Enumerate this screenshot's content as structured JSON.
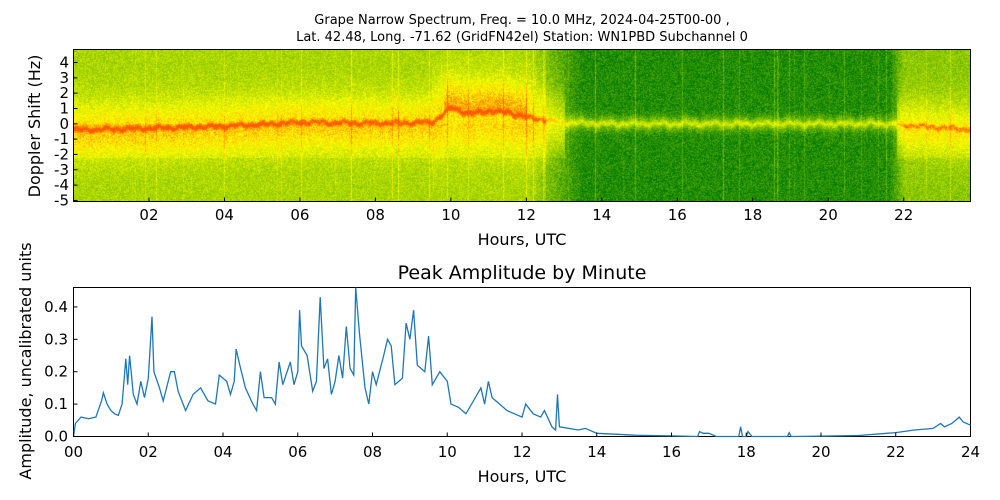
{
  "chart_data": [
    {
      "type": "heatmap",
      "title_lines": [
        "Grape Narrow Spectrum, Freq. = 10.0 MHz, 2024-04-25T00-00 ,",
        "Lat.  42.48, Long. -71.62 (GridFN42el) Station: WN1PBD Subchannel 0"
      ],
      "xlabel": "Hours, UTC",
      "ylabel": "Doppler Shift (Hz)",
      "xlim": [
        0,
        23.77
      ],
      "ylim": [
        -5.07,
        4.85
      ],
      "xticks": [
        "02",
        "04",
        "06",
        "08",
        "10",
        "12",
        "14",
        "16",
        "18",
        "20",
        "22"
      ],
      "xtick_values": [
        2,
        4,
        6,
        8,
        10,
        12,
        14,
        16,
        18,
        20,
        22
      ],
      "yticks": [
        "4",
        "3",
        "2",
        "1",
        "0",
        "-1",
        "-2",
        "-3",
        "-4",
        "-5"
      ],
      "ytick_values": [
        4,
        3,
        2,
        1,
        0,
        -1,
        -2,
        -3,
        -4,
        -5
      ],
      "colormap": [
        "#007a00",
        "#8cc800",
        "#ffff00",
        "#ff5a00"
      ],
      "trace_hz": {
        "hours": [
          0,
          2,
          4,
          6,
          8,
          9.5,
          10,
          10.5,
          11,
          11.5,
          12,
          13,
          14,
          21.5,
          23.8
        ],
        "shift": [
          -0.4,
          -0.3,
          -0.15,
          0.1,
          0.05,
          0.1,
          1.0,
          0.6,
          0.8,
          0.7,
          0.4,
          0.1,
          0.0,
          0.0,
          -0.4
        ]
      }
    },
    {
      "type": "line",
      "title": "Peak Amplitude by Minute",
      "xlabel": "Hours, UTC",
      "ylabel": "Amplitude, uncalibrated units",
      "xlim": [
        0,
        24
      ],
      "ylim": [
        0,
        0.46
      ],
      "xticks": [
        "00",
        "02",
        "04",
        "06",
        "08",
        "10",
        "12",
        "14",
        "16",
        "18",
        "20",
        "22",
        "24"
      ],
      "xtick_values": [
        0,
        2,
        4,
        6,
        8,
        10,
        12,
        14,
        16,
        18,
        20,
        22,
        24
      ],
      "yticks": [
        "0.0",
        "0.1",
        "0.2",
        "0.3",
        "0.4"
      ],
      "ytick_values": [
        0,
        0.1,
        0.2,
        0.3,
        0.4
      ],
      "color": "#1f77b4",
      "x": [
        0.0,
        0.05,
        0.2,
        0.4,
        0.6,
        0.75,
        0.8,
        0.9,
        1.0,
        1.1,
        1.2,
        1.3,
        1.4,
        1.45,
        1.5,
        1.6,
        1.7,
        1.8,
        1.9,
        2.0,
        2.1,
        2.15,
        2.3,
        2.4,
        2.6,
        2.7,
        2.8,
        3.0,
        3.2,
        3.4,
        3.6,
        3.8,
        3.9,
        4.1,
        4.2,
        4.3,
        4.35,
        4.45,
        4.6,
        4.8,
        4.9,
        5.0,
        5.1,
        5.3,
        5.4,
        5.5,
        5.6,
        5.8,
        5.9,
        6.0,
        6.05,
        6.1,
        6.25,
        6.4,
        6.5,
        6.6,
        6.7,
        6.8,
        6.9,
        7.0,
        7.1,
        7.2,
        7.3,
        7.4,
        7.5,
        7.55,
        7.65,
        7.8,
        7.9,
        8.0,
        8.1,
        8.3,
        8.4,
        8.5,
        8.6,
        8.8,
        8.9,
        9.0,
        9.1,
        9.2,
        9.4,
        9.5,
        9.6,
        9.8,
        10.0,
        10.1,
        10.3,
        10.5,
        10.7,
        10.9,
        11.0,
        11.1,
        11.2,
        11.4,
        11.6,
        11.8,
        12.0,
        12.1,
        12.3,
        12.5,
        12.6,
        12.8,
        12.9,
        12.95,
        13.0,
        13.5,
        13.7,
        14.0,
        14.5,
        15.0,
        16.0,
        16.7,
        16.75,
        16.85,
        17.0,
        17.2,
        17.8,
        17.85,
        17.9,
        18.0,
        18.05,
        18.15,
        19.1,
        19.15,
        19.2,
        20.0,
        21.0,
        22.0,
        22.5,
        23.0,
        23.2,
        23.3,
        23.5,
        23.6,
        23.7,
        23.8,
        24.0
      ],
      "y": [
        0.0,
        0.04,
        0.06,
        0.055,
        0.06,
        0.11,
        0.135,
        0.1,
        0.08,
        0.07,
        0.065,
        0.1,
        0.24,
        0.16,
        0.25,
        0.13,
        0.1,
        0.17,
        0.12,
        0.18,
        0.37,
        0.2,
        0.15,
        0.11,
        0.2,
        0.2,
        0.14,
        0.08,
        0.13,
        0.15,
        0.11,
        0.1,
        0.19,
        0.17,
        0.13,
        0.17,
        0.27,
        0.22,
        0.15,
        0.1,
        0.08,
        0.2,
        0.12,
        0.12,
        0.1,
        0.23,
        0.16,
        0.23,
        0.16,
        0.2,
        0.39,
        0.28,
        0.25,
        0.14,
        0.17,
        0.43,
        0.21,
        0.24,
        0.13,
        0.17,
        0.25,
        0.18,
        0.34,
        0.21,
        0.19,
        0.47,
        0.32,
        0.15,
        0.1,
        0.2,
        0.16,
        0.25,
        0.3,
        0.28,
        0.16,
        0.18,
        0.35,
        0.3,
        0.39,
        0.22,
        0.2,
        0.31,
        0.16,
        0.2,
        0.17,
        0.1,
        0.09,
        0.07,
        0.11,
        0.15,
        0.1,
        0.17,
        0.12,
        0.1,
        0.08,
        0.07,
        0.06,
        0.1,
        0.07,
        0.06,
        0.08,
        0.03,
        0.02,
        0.13,
        0.03,
        0.02,
        0.025,
        0.01,
        0.007,
        0.004,
        0.002,
        0.0,
        0.015,
        0.01,
        0.01,
        0.0,
        0.0,
        0.03,
        0.0,
        0.0,
        0.015,
        0.0,
        0.0,
        0.012,
        0.0,
        0.001,
        0.003,
        0.012,
        0.02,
        0.025,
        0.04,
        0.03,
        0.04,
        0.05,
        0.06,
        0.045,
        0.035
      ]
    }
  ]
}
